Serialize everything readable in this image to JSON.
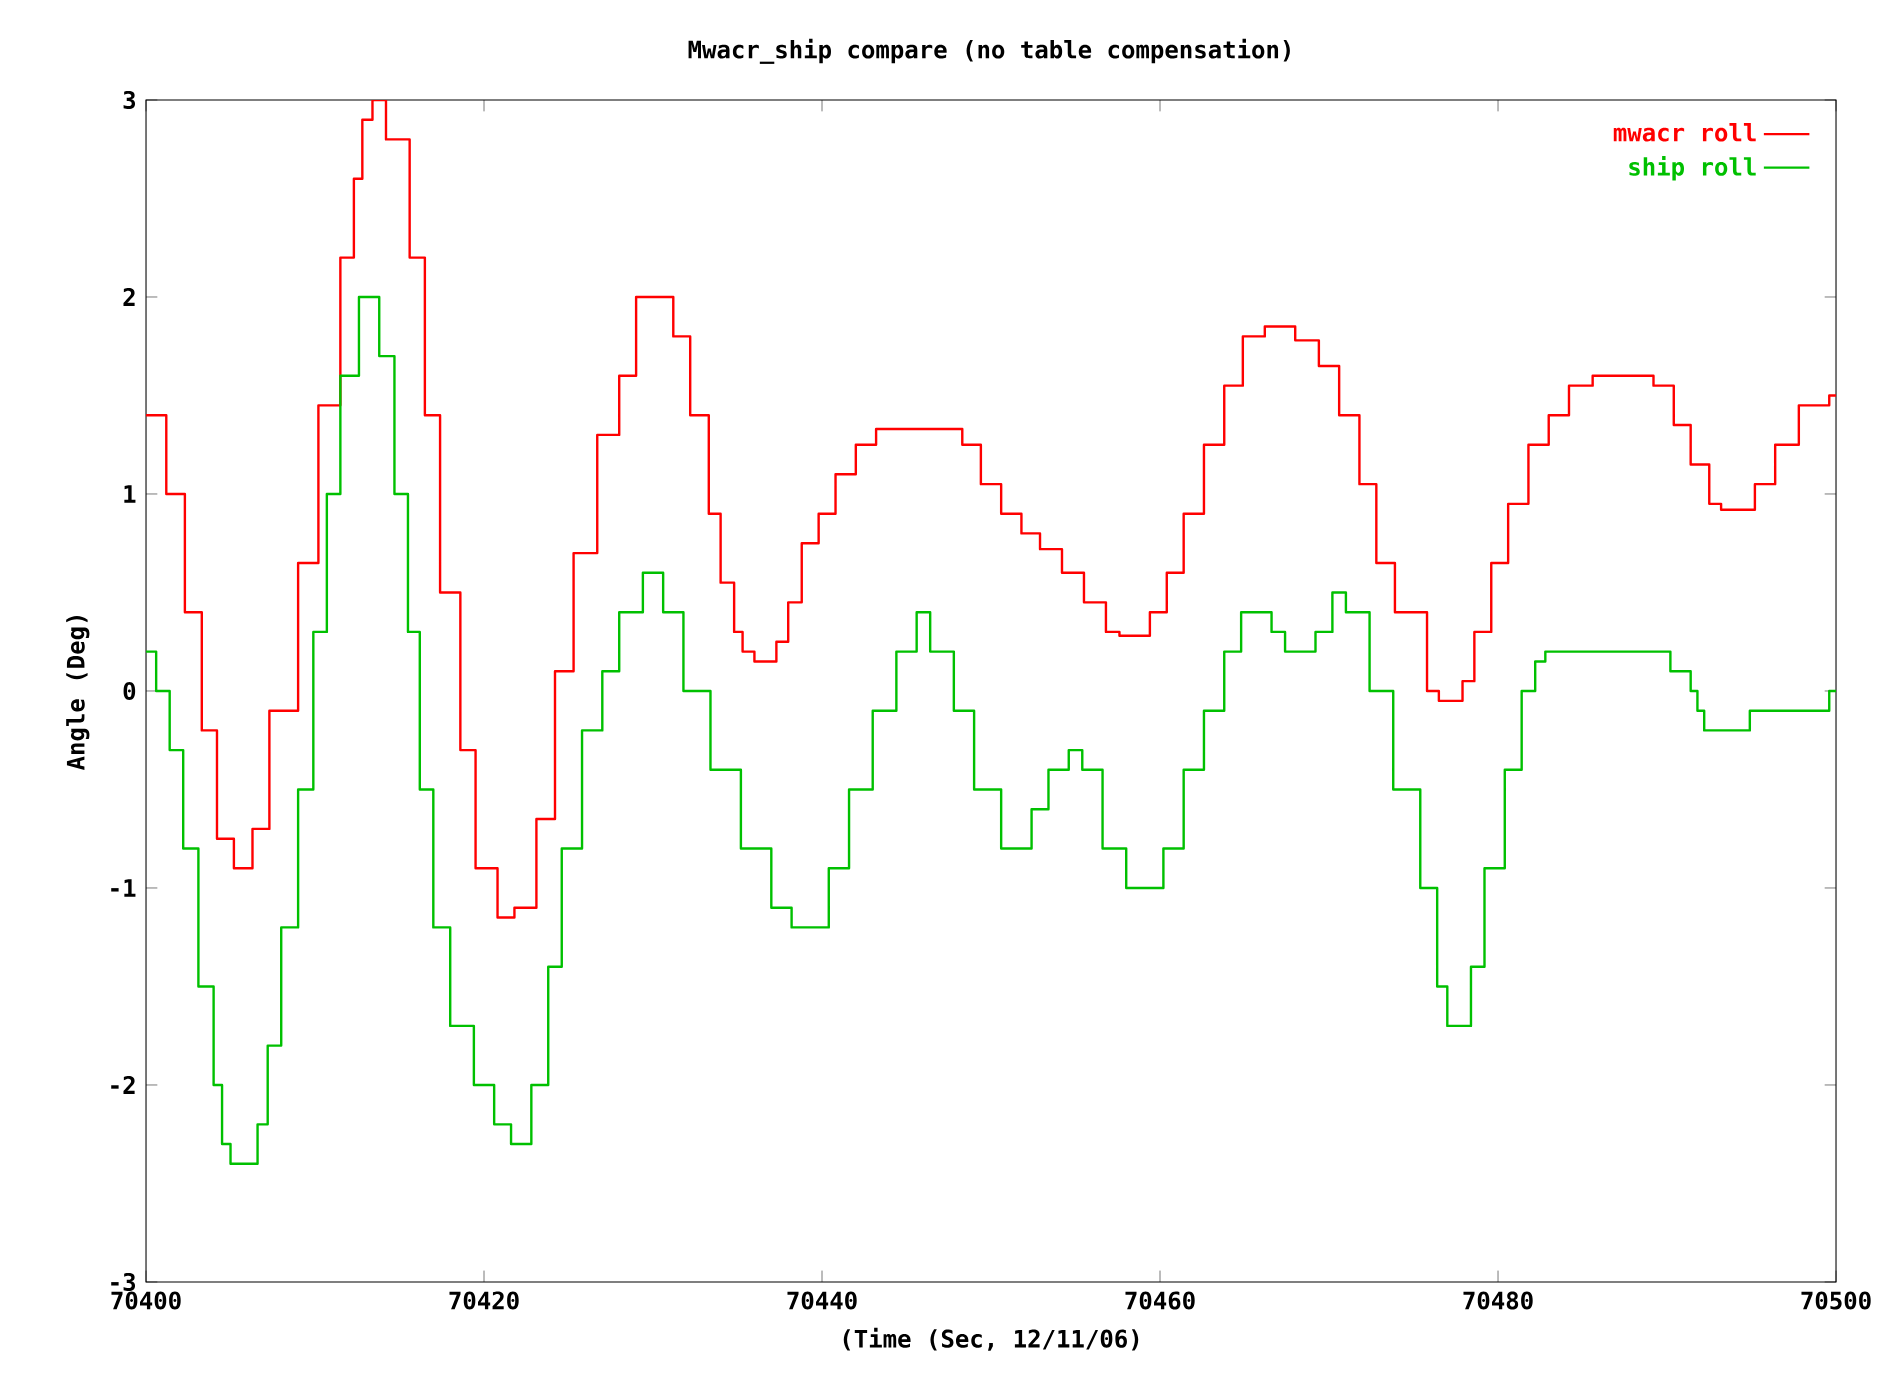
{
  "chart_data": {
    "type": "step",
    "title": "Mwacr_ship compare (no table compensation)",
    "xlabel": "(Time (Sec, 12/11/06)",
    "ylabel": "Angle (Deg)",
    "xlim": [
      70400,
      70500
    ],
    "ylim": [
      -3,
      3
    ],
    "xticks": [
      70400,
      70420,
      70440,
      70460,
      70480,
      70500
    ],
    "yticks": [
      -3,
      -2,
      -1,
      0,
      1,
      2,
      3
    ],
    "legend": "top right",
    "grid": false,
    "series": [
      {
        "name": "mwacr roll",
        "color": "#ff0000",
        "x": [
          70400,
          70401.2,
          70402.3,
          70403.3,
          70404.2,
          70405.2,
          70406.3,
          70407.3,
          70409,
          70410.2,
          70411.5,
          70412.3,
          70412.8,
          70413.4,
          70414.2,
          70415.6,
          70416.5,
          70417.4,
          70418.6,
          70419.5,
          70420.8,
          70421.8,
          70423.1,
          70424.2,
          70425.3,
          70426.7,
          70428,
          70429,
          70431.2,
          70432.2,
          70433.3,
          70434,
          70434.8,
          70435.3,
          70436,
          70437.3,
          70438,
          70438.8,
          70439.8,
          70440.8,
          70442,
          70443.2,
          70448.3,
          70449.4,
          70450.6,
          70451.8,
          70452.9,
          70454.2,
          70455.5,
          70456.8,
          70457.6,
          70459.4,
          70460.4,
          70461.4,
          70462.6,
          70463.8,
          70464.9,
          70466.2,
          70468,
          70469.4,
          70470.6,
          70471.8,
          70472.8,
          70473.9,
          70475.8,
          70476.5,
          70477.9,
          70478.6,
          70479.6,
          70480.6,
          70481.8,
          70483,
          70484.2,
          70485.6,
          70489.2,
          70490.4,
          70491.4,
          70492.5,
          70493.2,
          70495.2,
          70496.4,
          70497.8,
          70499.6,
          70500
        ],
        "values": [
          1.4,
          1.0,
          0.4,
          -0.2,
          -0.75,
          -0.9,
          -0.7,
          -0.1,
          0.65,
          1.45,
          2.2,
          2.6,
          2.9,
          3.0,
          2.8,
          2.2,
          1.4,
          0.5,
          -0.3,
          -0.9,
          -1.15,
          -1.1,
          -0.65,
          0.1,
          0.7,
          1.3,
          1.6,
          2.0,
          1.8,
          1.4,
          0.9,
          0.55,
          0.3,
          0.2,
          0.15,
          0.25,
          0.45,
          0.75,
          0.9,
          1.1,
          1.25,
          1.33,
          1.25,
          1.05,
          0.9,
          0.8,
          0.72,
          0.6,
          0.45,
          0.3,
          0.28,
          0.4,
          0.6,
          0.9,
          1.25,
          1.55,
          1.8,
          1.85,
          1.78,
          1.65,
          1.4,
          1.05,
          0.65,
          0.4,
          0.0,
          -0.05,
          0.05,
          0.3,
          0.65,
          0.95,
          1.25,
          1.4,
          1.55,
          1.6,
          1.55,
          1.35,
          1.15,
          0.95,
          0.92,
          1.05,
          1.25,
          1.45,
          1.5,
          1.5
        ]
      },
      {
        "name": "ship roll",
        "color": "#00c000",
        "x": [
          70400,
          70400.6,
          70401.4,
          70402.2,
          70403.1,
          70404,
          70404.5,
          70405,
          70406.6,
          70407.2,
          70408,
          70409,
          70409.9,
          70410.7,
          70411.5,
          70412.6,
          70413.8,
          70414.7,
          70415.5,
          70416.2,
          70417,
          70418,
          70419.4,
          70420.6,
          70421.6,
          70422.8,
          70423.8,
          70424.6,
          70425.8,
          70427,
          70428,
          70429.4,
          70430.6,
          70431.8,
          70433.4,
          70435.2,
          70437,
          70438.2,
          70440.4,
          70441.6,
          70443,
          70444.4,
          70445.6,
          70446.4,
          70447.8,
          70449,
          70450.6,
          70452.4,
          70453.4,
          70454.6,
          70455.4,
          70456.6,
          70458,
          70460.2,
          70461.4,
          70462.6,
          70463.8,
          70464.8,
          70466.6,
          70467.4,
          70469.2,
          70470.2,
          70471,
          70472.4,
          70473.8,
          70475.4,
          70476.4,
          70477,
          70478.4,
          70479.2,
          70480.4,
          70481.4,
          70482.2,
          70482.8,
          70490.2,
          70491.4,
          70491.8,
          70492.2,
          70494.9,
          70499.6,
          70500
        ],
        "values": [
          0.2,
          0.0,
          -0.3,
          -0.8,
          -1.5,
          -2.0,
          -2.3,
          -2.4,
          -2.2,
          -1.8,
          -1.2,
          -0.5,
          0.3,
          1.0,
          1.6,
          2.0,
          1.7,
          1.0,
          0.3,
          -0.5,
          -1.2,
          -1.7,
          -2.0,
          -2.2,
          -2.3,
          -2.0,
          -1.4,
          -0.8,
          -0.2,
          0.1,
          0.4,
          0.6,
          0.4,
          0.0,
          -0.4,
          -0.8,
          -1.1,
          -1.2,
          -0.9,
          -0.5,
          -0.1,
          0.2,
          0.4,
          0.2,
          -0.1,
          -0.5,
          -0.8,
          -0.6,
          -0.4,
          -0.3,
          -0.4,
          -0.8,
          -1.0,
          -0.8,
          -0.4,
          -0.1,
          0.2,
          0.4,
          0.3,
          0.2,
          0.3,
          0.5,
          0.4,
          0.0,
          -0.5,
          -1.0,
          -1.5,
          -1.7,
          -1.4,
          -0.9,
          -0.4,
          0.0,
          0.15,
          0.2,
          0.1,
          0.0,
          -0.1,
          -0.2,
          -0.1,
          0.0,
          0.0
        ]
      }
    ]
  }
}
